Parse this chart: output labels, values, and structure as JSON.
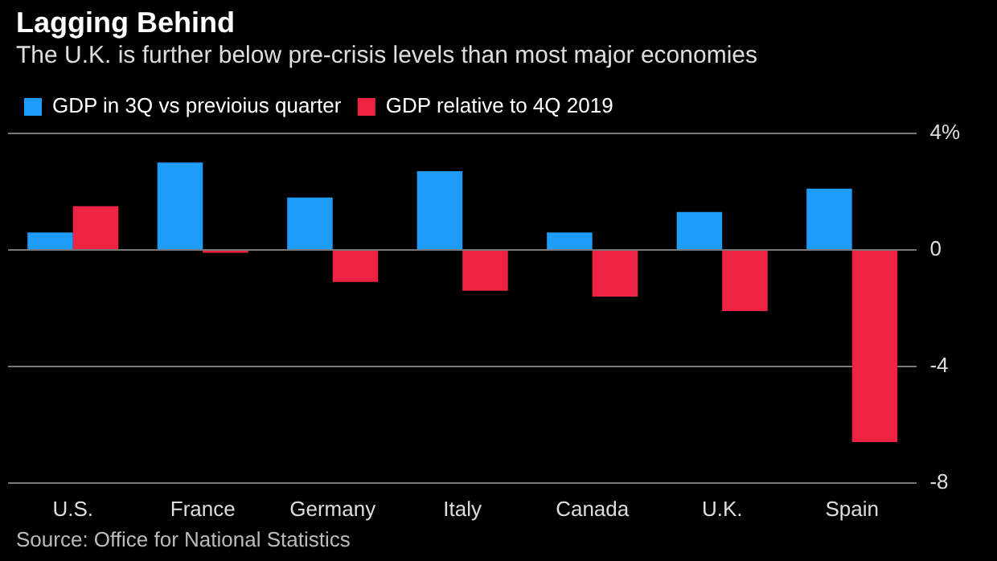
{
  "chart_data": {
    "type": "bar",
    "title": "Lagging Behind",
    "subtitle": "The U.K. is further below pre-crisis levels than most major economies",
    "categories": [
      "U.S.",
      "France",
      "Germany",
      "Italy",
      "Canada",
      "U.K.",
      "Spain"
    ],
    "series": [
      {
        "name": "GDP in 3Q vs previoius quarter",
        "color": "#1f9cfa",
        "values": [
          0.6,
          3.0,
          1.8,
          2.7,
          0.6,
          1.3,
          2.1
        ]
      },
      {
        "name": "GDP relative to 4Q 2019",
        "color": "#ee2344",
        "values": [
          1.5,
          -0.1,
          -1.1,
          -1.4,
          -1.6,
          -2.1,
          -6.6
        ]
      }
    ],
    "ylim": [
      -8,
      4
    ],
    "yticks": [
      {
        "value": 4,
        "label": "4%"
      },
      0,
      -4,
      -8
    ],
    "grid": "y",
    "legend": "top left",
    "annotations": [
      "Source: Office for National Statistics"
    ]
  }
}
